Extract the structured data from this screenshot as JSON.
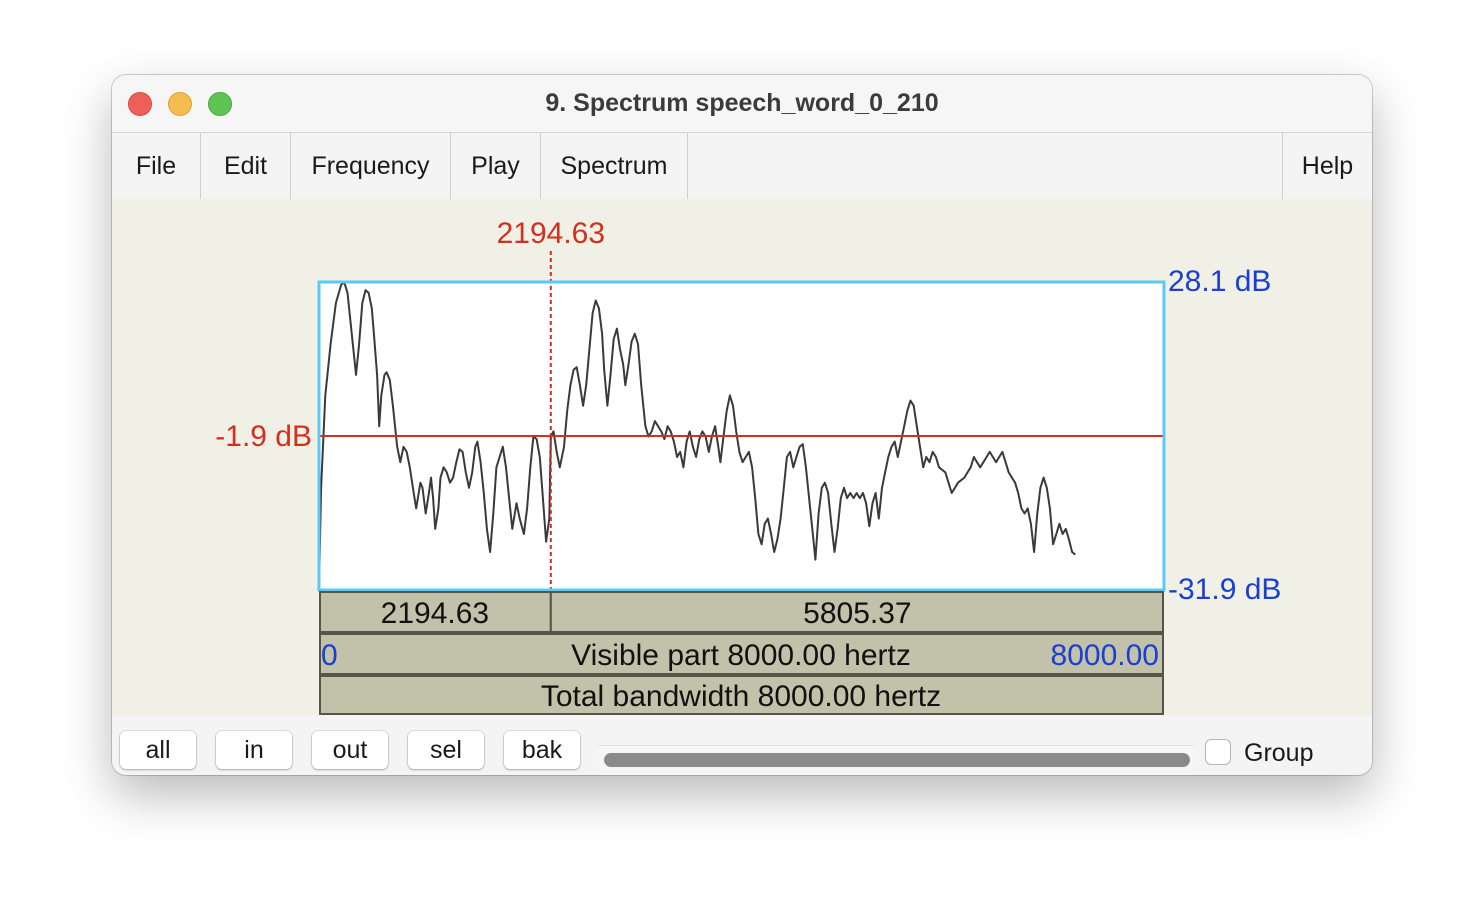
{
  "window": {
    "title": "9. Spectrum speech_word_0_210"
  },
  "menu": {
    "items": [
      "File",
      "Edit",
      "Frequency",
      "Play",
      "Spectrum"
    ],
    "help": "Help"
  },
  "spectrum": {
    "cursor_frequency_label": "2194.63",
    "cursor_level_label": "-1.9 dB",
    "y_max_label": "28.1 dB",
    "y_min_label": "-31.9 dB",
    "cursor_frequency_hz": 2194.63,
    "cursor_level_db": -1.9,
    "x_range_hz": [
      0,
      8000
    ],
    "y_range_db": [
      -31.9,
      28.1
    ],
    "left_segment_label": "2194.63",
    "right_segment_label": "5805.37",
    "visible_start_label": "0",
    "visible_part_label": "Visible part 8000.00 hertz",
    "visible_end_label": "8000.00",
    "total_bandwidth_label": "Total bandwidth 8000.00 hertz",
    "colors": {
      "frame": "#5bc8f5",
      "cursor": "#d0301c",
      "axis_labels": "#1a3fd1",
      "curve": "#3a3a3a",
      "bars": "#c2c1a9"
    },
    "curve_points_hz_db": [
      [
        0,
        -31.9
      ],
      [
        20,
        -12
      ],
      [
        60,
        6
      ],
      [
        110,
        16
      ],
      [
        160,
        24
      ],
      [
        210,
        27.6
      ],
      [
        240,
        28
      ],
      [
        270,
        26
      ],
      [
        300,
        20
      ],
      [
        330,
        14
      ],
      [
        350,
        10
      ],
      [
        380,
        16
      ],
      [
        410,
        24
      ],
      [
        440,
        26.5
      ],
      [
        470,
        26
      ],
      [
        500,
        23
      ],
      [
        520,
        18
      ],
      [
        550,
        10
      ],
      [
        570,
        0
      ],
      [
        590,
        6
      ],
      [
        620,
        10
      ],
      [
        640,
        10.5
      ],
      [
        670,
        9
      ],
      [
        700,
        4
      ],
      [
        740,
        -4
      ],
      [
        770,
        -7
      ],
      [
        800,
        -4
      ],
      [
        830,
        -5
      ],
      [
        860,
        -8
      ],
      [
        900,
        -13.5
      ],
      [
        920,
        -16
      ],
      [
        960,
        -11
      ],
      [
        980,
        -12
      ],
      [
        1010,
        -17
      ],
      [
        1040,
        -13
      ],
      [
        1060,
        -10
      ],
      [
        1080,
        -14
      ],
      [
        1100,
        -20
      ],
      [
        1130,
        -16
      ],
      [
        1150,
        -10
      ],
      [
        1180,
        -8
      ],
      [
        1210,
        -9
      ],
      [
        1240,
        -11
      ],
      [
        1270,
        -10
      ],
      [
        1300,
        -7
      ],
      [
        1330,
        -4.5
      ],
      [
        1360,
        -5
      ],
      [
        1390,
        -9
      ],
      [
        1420,
        -12
      ],
      [
        1450,
        -9
      ],
      [
        1480,
        -4
      ],
      [
        1500,
        -3
      ],
      [
        1530,
        -7
      ],
      [
        1560,
        -13
      ],
      [
        1590,
        -20
      ],
      [
        1620,
        -24.5
      ],
      [
        1650,
        -17
      ],
      [
        1680,
        -8
      ],
      [
        1710,
        -6
      ],
      [
        1740,
        -4
      ],
      [
        1770,
        -8
      ],
      [
        1800,
        -14
      ],
      [
        1830,
        -20
      ],
      [
        1870,
        -15
      ],
      [
        1900,
        -18
      ],
      [
        1940,
        -21
      ],
      [
        1970,
        -16
      ],
      [
        2000,
        -8
      ],
      [
        2030,
        -2
      ],
      [
        2060,
        -2.5
      ],
      [
        2090,
        -6
      ],
      [
        2120,
        -14
      ],
      [
        2150,
        -22.5
      ],
      [
        2180,
        -18
      ],
      [
        2194.6,
        -2
      ],
      [
        2220,
        -1
      ],
      [
        2250,
        -5
      ],
      [
        2280,
        -8
      ],
      [
        2320,
        -4
      ],
      [
        2350,
        3
      ],
      [
        2380,
        8
      ],
      [
        2410,
        11
      ],
      [
        2440,
        11.5
      ],
      [
        2470,
        8
      ],
      [
        2500,
        4
      ],
      [
        2530,
        8
      ],
      [
        2560,
        15
      ],
      [
        2590,
        22
      ],
      [
        2620,
        24.5
      ],
      [
        2650,
        23
      ],
      [
        2680,
        18
      ],
      [
        2700,
        11
      ],
      [
        2730,
        4
      ],
      [
        2760,
        10
      ],
      [
        2790,
        17
      ],
      [
        2820,
        19
      ],
      [
        2850,
        15
      ],
      [
        2880,
        12
      ],
      [
        2900,
        8
      ],
      [
        2930,
        12
      ],
      [
        2960,
        16.5
      ],
      [
        2990,
        18
      ],
      [
        3020,
        16
      ],
      [
        3050,
        8
      ],
      [
        3090,
        0
      ],
      [
        3120,
        -2
      ],
      [
        3150,
        -1
      ],
      [
        3180,
        1
      ],
      [
        3210,
        0
      ],
      [
        3240,
        -1
      ],
      [
        3270,
        -2.5
      ],
      [
        3300,
        0
      ],
      [
        3330,
        -1
      ],
      [
        3360,
        -3
      ],
      [
        3390,
        -6
      ],
      [
        3420,
        -5
      ],
      [
        3450,
        -8
      ],
      [
        3480,
        -3
      ],
      [
        3510,
        -1
      ],
      [
        3540,
        -4
      ],
      [
        3570,
        -6
      ],
      [
        3600,
        -2.5
      ],
      [
        3630,
        -1
      ],
      [
        3660,
        -2
      ],
      [
        3690,
        -5
      ],
      [
        3720,
        -2
      ],
      [
        3750,
        0
      ],
      [
        3780,
        -4
      ],
      [
        3800,
        -7
      ],
      [
        3830,
        -2
      ],
      [
        3860,
        3
      ],
      [
        3890,
        6
      ],
      [
        3920,
        4
      ],
      [
        3950,
        -1
      ],
      [
        3980,
        -5
      ],
      [
        4010,
        -7
      ],
      [
        4040,
        -6
      ],
      [
        4070,
        -5
      ],
      [
        4100,
        -8
      ],
      [
        4130,
        -14
      ],
      [
        4160,
        -21
      ],
      [
        4190,
        -23
      ],
      [
        4220,
        -19
      ],
      [
        4250,
        -18
      ],
      [
        4280,
        -21
      ],
      [
        4310,
        -24.5
      ],
      [
        4340,
        -22
      ],
      [
        4370,
        -18
      ],
      [
        4400,
        -12
      ],
      [
        4430,
        -6
      ],
      [
        4460,
        -5
      ],
      [
        4490,
        -8
      ],
      [
        4520,
        -6
      ],
      [
        4550,
        -4
      ],
      [
        4580,
        -3.5
      ],
      [
        4610,
        -8
      ],
      [
        4640,
        -14
      ],
      [
        4670,
        -20
      ],
      [
        4700,
        -26
      ],
      [
        4730,
        -17
      ],
      [
        4760,
        -12
      ],
      [
        4790,
        -11
      ],
      [
        4820,
        -13
      ],
      [
        4850,
        -19
      ],
      [
        4880,
        -24.5
      ],
      [
        4910,
        -20
      ],
      [
        4940,
        -14
      ],
      [
        4970,
        -12
      ],
      [
        5000,
        -14
      ],
      [
        5030,
        -13
      ],
      [
        5060,
        -14
      ],
      [
        5090,
        -13
      ],
      [
        5120,
        -14
      ],
      [
        5150,
        -13
      ],
      [
        5180,
        -15
      ],
      [
        5210,
        -19.5
      ],
      [
        5240,
        -15
      ],
      [
        5270,
        -13
      ],
      [
        5300,
        -18
      ],
      [
        5330,
        -12
      ],
      [
        5360,
        -9
      ],
      [
        5390,
        -6
      ],
      [
        5420,
        -4
      ],
      [
        5450,
        -3
      ],
      [
        5480,
        -6
      ],
      [
        5510,
        -3
      ],
      [
        5540,
        0
      ],
      [
        5570,
        3
      ],
      [
        5600,
        5
      ],
      [
        5630,
        4
      ],
      [
        5660,
        0
      ],
      [
        5690,
        -4
      ],
      [
        5720,
        -8
      ],
      [
        5750,
        -6
      ],
      [
        5780,
        -7
      ],
      [
        5810,
        -5
      ],
      [
        5840,
        -6
      ],
      [
        5870,
        -8
      ],
      [
        5900,
        -8.5
      ],
      [
        5930,
        -9
      ],
      [
        5960,
        -11
      ],
      [
        5990,
        -13
      ],
      [
        6020,
        -12
      ],
      [
        6050,
        -11
      ],
      [
        6080,
        -10.5
      ],
      [
        6110,
        -10
      ],
      [
        6140,
        -9
      ],
      [
        6170,
        -8
      ],
      [
        6200,
        -6
      ],
      [
        6230,
        -7
      ],
      [
        6260,
        -8
      ],
      [
        6290,
        -7
      ],
      [
        6320,
        -6
      ],
      [
        6350,
        -5
      ],
      [
        6380,
        -6
      ],
      [
        6410,
        -7
      ],
      [
        6440,
        -6
      ],
      [
        6470,
        -5
      ],
      [
        6500,
        -7
      ],
      [
        6530,
        -9
      ],
      [
        6560,
        -10
      ],
      [
        6590,
        -11
      ],
      [
        6620,
        -13
      ],
      [
        6650,
        -16
      ],
      [
        6680,
        -17
      ],
      [
        6710,
        -16
      ],
      [
        6740,
        -19
      ],
      [
        6770,
        -24.5
      ],
      [
        6800,
        -17
      ],
      [
        6830,
        -12
      ],
      [
        6860,
        -10
      ],
      [
        6890,
        -12
      ],
      [
        6920,
        -16
      ],
      [
        6950,
        -23
      ],
      [
        6980,
        -21
      ],
      [
        7010,
        -19
      ],
      [
        7040,
        -21
      ],
      [
        7070,
        -20
      ],
      [
        7100,
        -22
      ],
      [
        7130,
        -24.5
      ],
      [
        7160,
        -25
      ]
    ]
  },
  "zoom_buttons": [
    "all",
    "in",
    "out",
    "sel",
    "bak"
  ],
  "group_checkbox": {
    "label": "Group",
    "checked": false
  }
}
